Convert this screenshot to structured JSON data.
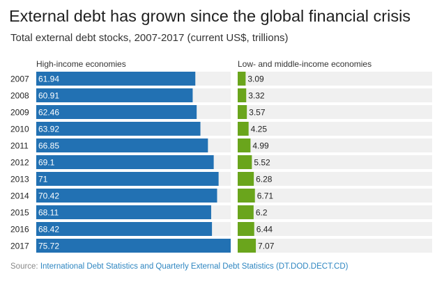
{
  "title": "External debt has grown since the global financial crisis",
  "subtitle": "Total external debt stocks, 2007-2017 (current US$, trillions)",
  "source_label": "Source:",
  "source_link": "International Debt Statistics and Quarterly External Debt Statistics (DT.DOD.DECT.CD)",
  "colors": {
    "high": "#2271b3",
    "low": "#6aa51c",
    "track": "#f0f0f0"
  },
  "chart_data": {
    "type": "bar",
    "orientation": "horizontal",
    "categories": [
      "2007",
      "2008",
      "2009",
      "2010",
      "2011",
      "2012",
      "2013",
      "2014",
      "2015",
      "2016",
      "2017"
    ],
    "series": [
      {
        "name": "High-income economies",
        "values": [
          61.94,
          60.91,
          62.46,
          63.92,
          66.85,
          69.1,
          71,
          70.42,
          68.11,
          68.42,
          75.72
        ]
      },
      {
        "name": "Low- and middle-income economies",
        "values": [
          3.09,
          3.32,
          3.57,
          4.25,
          4.99,
          5.52,
          6.28,
          6.71,
          6.2,
          6.44,
          7.07
        ]
      }
    ],
    "value_labels": {
      "high": [
        "61.94",
        "60.91",
        "62.46",
        "63.92",
        "66.85",
        "69.1",
        "71",
        "70.42",
        "68.11",
        "68.42",
        "75.72"
      ],
      "low": [
        "3.09",
        "3.32",
        "3.57",
        "4.25",
        "4.99",
        "5.52",
        "6.28",
        "6.71",
        "6.2",
        "6.44",
        "7.07"
      ]
    },
    "xlim_high": [
      0,
      75.72
    ],
    "xlim_low": [
      0,
      75.72
    ]
  }
}
